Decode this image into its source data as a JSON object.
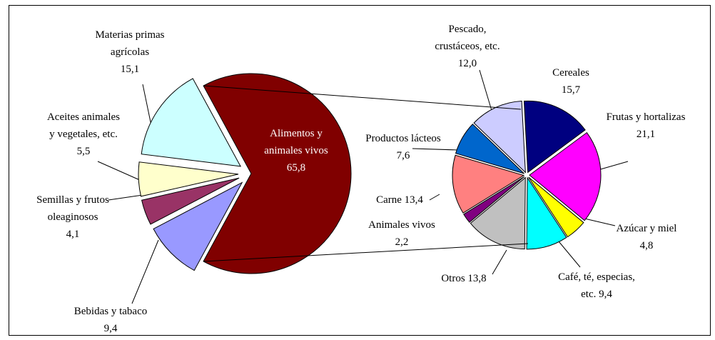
{
  "chart_data": [
    {
      "type": "pie",
      "categories": [
        "Alimentos y animales vivos",
        "Bebidas y tabaco",
        "Semillas y frutos oleaginosos",
        "Aceites animales y vegetales, etc.",
        "Materias primas agrícolas"
      ],
      "values": [
        65.8,
        9.4,
        4.1,
        5.5,
        15.1
      ],
      "value_labels": [
        "65,8",
        "9,4",
        "4,1",
        "5,5",
        "15,1"
      ],
      "colors": [
        "#800000",
        "#9999ff",
        "#993366",
        "#ffffcc",
        "#ccffff"
      ]
    },
    {
      "type": "pie",
      "categories": [
        "Cereales",
        "Frutas y hortalizas",
        "Azúcar y miel",
        "Café, té, especias, etc.",
        "Otros",
        "Animales vivos",
        "Carne",
        "Productos lácteos",
        "Pescado, crustáceos, etc."
      ],
      "values": [
        15.7,
        21.1,
        4.8,
        9.4,
        13.8,
        2.2,
        13.4,
        7.6,
        12.0
      ],
      "value_labels": [
        "15,7",
        "21,1",
        "4,8",
        "9,4",
        "13,8",
        "2,2",
        "13,4",
        "7,6",
        "12,0"
      ],
      "colors": [
        "#000080",
        "#ff00ff",
        "#ffff00",
        "#00ffff",
        "#c0c0c0",
        "#800080",
        "#ff8080",
        "#0066cc",
        "#ccccff"
      ]
    }
  ]
}
